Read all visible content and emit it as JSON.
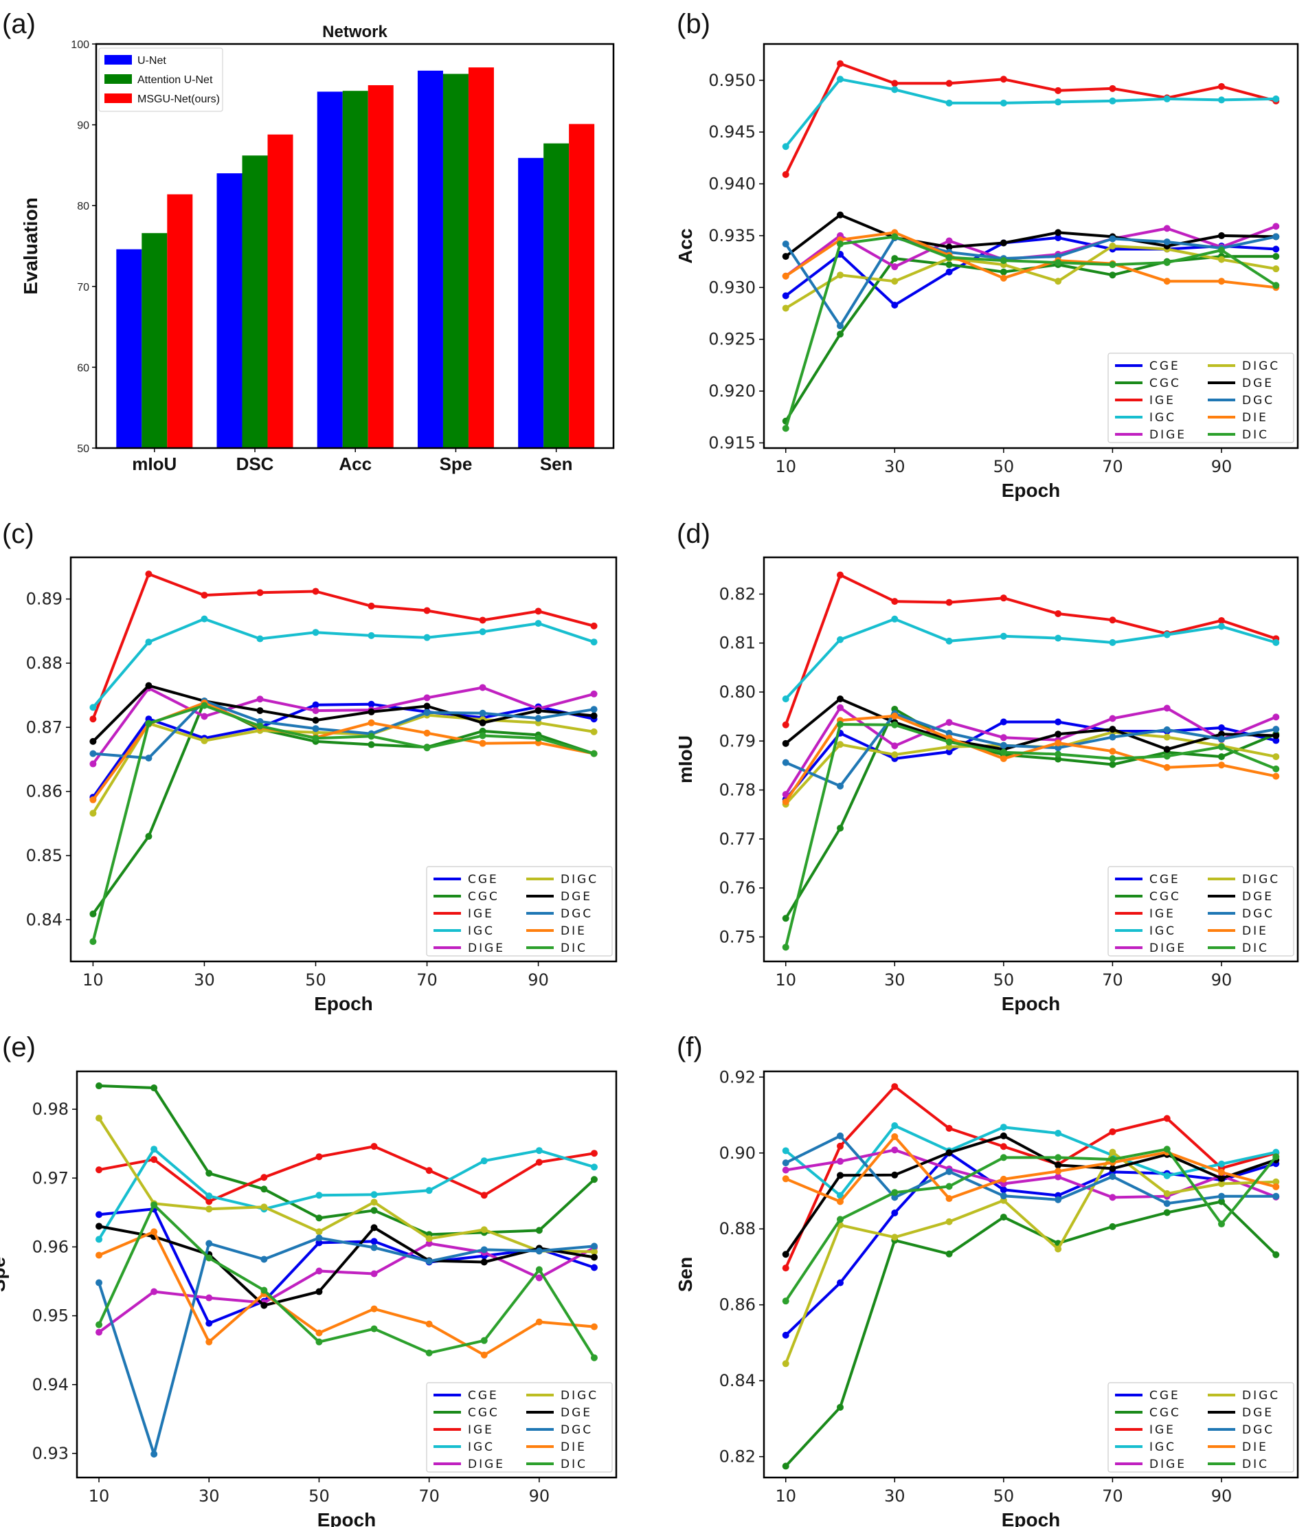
{
  "colors": {
    "U-Net": "#0000ff",
    "Attention U-Net": "#008000",
    "MSGU-Net(ours)": "#ff0000",
    "CGE": "#0000ee",
    "CGC": "#1a8a1a",
    "IGE": "#ee1111",
    "IGC": "#17becf",
    "DIGE": "#c020c0",
    "DIGC": "#bcbd22",
    "DGE": "#000000",
    "DGC": "#1f77b4",
    "DIE": "#ff7f0e",
    "DIC": "#2ca02c"
  },
  "legend_order": [
    "CGE",
    "DIGC",
    "CGC",
    "DGE",
    "IGE",
    "DGC",
    "IGC",
    "DIE",
    "DIGE",
    "DIC"
  ],
  "legend_labels": {
    "CGE": "CGE",
    "DIGC": "DIGC",
    "CGC": "CGC",
    "DGE": "DGE",
    "IGE": "IGE",
    "DGC": "DGC",
    "IGC": "IGC",
    "DIE": "DIE",
    "DIGE": "DIGE",
    "DIC": "DIC"
  },
  "chart_data": [
    {
      "panel": "(a)",
      "type": "bar",
      "title": "Network",
      "xlabel": "",
      "ylabel": "Evaluation",
      "ylim": [
        50,
        100
      ],
      "yticks": [
        50,
        60,
        70,
        80,
        90,
        100
      ],
      "categories": [
        "mIoU",
        "DSC",
        "Acc",
        "Spe",
        "Sen"
      ],
      "series": [
        {
          "name": "U-Net",
          "values": [
            74.6,
            84.0,
            94.1,
            96.7,
            85.9
          ]
        },
        {
          "name": "Attention U-Net",
          "values": [
            76.6,
            86.2,
            94.2,
            96.3,
            87.7
          ]
        },
        {
          "name": "MSGU-Net(ours)",
          "values": [
            81.4,
            88.8,
            94.9,
            97.1,
            90.1
          ]
        }
      ],
      "legend_position": "top-left"
    },
    {
      "panel": "(b)",
      "type": "line",
      "xlabel": "Epoch",
      "ylabel": "Acc",
      "ylim": [
        0.9145,
        0.9535
      ],
      "yticks": [
        "0.915",
        "0.920",
        "0.925",
        "0.930",
        "0.935",
        "0.940",
        "0.945",
        "0.950"
      ],
      "xticks": [
        "10",
        "30",
        "50",
        "70",
        "90"
      ],
      "x": [
        10,
        20,
        30,
        40,
        50,
        60,
        70,
        80,
        90,
        100
      ],
      "legend_position": "bottom-right",
      "series": [
        {
          "name": "CGE",
          "values": [
            0.9292,
            0.9332,
            0.9283,
            0.9315,
            0.9343,
            0.9348,
            0.9337,
            0.9337,
            0.934,
            0.9337
          ]
        },
        {
          "name": "CGC",
          "values": [
            0.9171,
            0.9255,
            0.9328,
            0.9322,
            0.9315,
            0.9322,
            0.9312,
            0.9325,
            0.933,
            0.933
          ]
        },
        {
          "name": "IGE",
          "values": [
            0.9409,
            0.9516,
            0.9497,
            0.9497,
            0.9501,
            0.949,
            0.9492,
            0.9483,
            0.9494,
            0.948
          ]
        },
        {
          "name": "IGC",
          "values": [
            0.9436,
            0.9501,
            0.9491,
            0.9478,
            0.9478,
            0.9479,
            0.948,
            0.9482,
            0.9481,
            0.9482
          ]
        },
        {
          "name": "DIGE",
          "values": [
            0.9311,
            0.935,
            0.932,
            0.9345,
            0.9327,
            0.9332,
            0.9347,
            0.9357,
            0.9339,
            0.9359
          ]
        },
        {
          "name": "DIGC",
          "values": [
            0.928,
            0.9312,
            0.9306,
            0.9328,
            0.9322,
            0.9306,
            0.934,
            0.9337,
            0.9327,
            0.9318
          ]
        },
        {
          "name": "DGE",
          "values": [
            0.933,
            0.937,
            0.9348,
            0.9339,
            0.9343,
            0.9353,
            0.9349,
            0.934,
            0.935,
            0.9349
          ]
        },
        {
          "name": "DGC",
          "values": [
            0.9342,
            0.9263,
            0.9348,
            0.9334,
            0.9328,
            0.933,
            0.9347,
            0.9344,
            0.9338,
            0.9349
          ]
        },
        {
          "name": "DIE",
          "values": [
            0.9311,
            0.9346,
            0.9353,
            0.9331,
            0.9309,
            0.9326,
            0.9323,
            0.9306,
            0.9306,
            0.93
          ]
        },
        {
          "name": "DIC",
          "values": [
            0.9164,
            0.9342,
            0.9349,
            0.9329,
            0.9326,
            0.9324,
            0.9322,
            0.9324,
            0.9336,
            0.9302
          ]
        }
      ]
    },
    {
      "panel": "(c)",
      "type": "line",
      "xlabel": "Epoch",
      "ylabel": "DSC",
      "ylim": [
        0.8335,
        0.8965
      ],
      "yticks": [
        "0.84",
        "0.85",
        "0.86",
        "0.87",
        "0.88",
        "0.89"
      ],
      "xticks": [
        "10",
        "30",
        "50",
        "70",
        "90"
      ],
      "x": [
        10,
        20,
        30,
        40,
        50,
        60,
        70,
        80,
        90,
        100
      ],
      "legend_position": "bottom-right",
      "series": [
        {
          "name": "CGE",
          "values": [
            0.8591,
            0.8713,
            0.8683,
            0.87,
            0.8735,
            0.8736,
            0.8724,
            0.8715,
            0.8732,
            0.8713
          ]
        },
        {
          "name": "CGC",
          "values": [
            0.8409,
            0.853,
            0.874,
            0.8697,
            0.8678,
            0.8673,
            0.8669,
            0.8694,
            0.8688,
            0.8659
          ]
        },
        {
          "name": "IGE",
          "values": [
            0.8713,
            0.8939,
            0.8906,
            0.891,
            0.8912,
            0.8889,
            0.8882,
            0.8867,
            0.8881,
            0.8858
          ]
        },
        {
          "name": "IGC",
          "values": [
            0.8731,
            0.8833,
            0.8869,
            0.8838,
            0.8848,
            0.8843,
            0.884,
            0.8849,
            0.8862,
            0.8833
          ]
        },
        {
          "name": "DIGE",
          "values": [
            0.8643,
            0.8761,
            0.8717,
            0.8744,
            0.8726,
            0.8727,
            0.8746,
            0.8762,
            0.8729,
            0.8752
          ]
        },
        {
          "name": "DIGC",
          "values": [
            0.8566,
            0.8706,
            0.8679,
            0.8695,
            0.8692,
            0.8689,
            0.8719,
            0.8712,
            0.8707,
            0.8693
          ]
        },
        {
          "name": "DGE",
          "values": [
            0.8678,
            0.8765,
            0.8741,
            0.8726,
            0.8711,
            0.8724,
            0.8733,
            0.8707,
            0.8726,
            0.8718
          ]
        },
        {
          "name": "DGC",
          "values": [
            0.8659,
            0.8652,
            0.8741,
            0.8709,
            0.8698,
            0.869,
            0.8723,
            0.8722,
            0.8714,
            0.8728
          ]
        },
        {
          "name": "DIE",
          "values": [
            0.8587,
            0.8705,
            0.8738,
            0.87,
            0.8684,
            0.8707,
            0.8691,
            0.8675,
            0.8676,
            0.8659
          ]
        },
        {
          "name": "DIC",
          "values": [
            0.8366,
            0.8706,
            0.8734,
            0.8702,
            0.8683,
            0.8686,
            0.8668,
            0.8687,
            0.8683,
            0.8659
          ]
        }
      ]
    },
    {
      "panel": "(d)",
      "type": "line",
      "xlabel": "Epoch",
      "ylabel": "mIoU",
      "ylim": [
        0.745,
        0.8275
      ],
      "yticks": [
        "0.75",
        "0.76",
        "0.77",
        "0.78",
        "0.79",
        "0.80",
        "0.81",
        "0.82"
      ],
      "xticks": [
        "10",
        "30",
        "50",
        "70",
        "90"
      ],
      "x": [
        10,
        20,
        30,
        40,
        50,
        60,
        70,
        80,
        90,
        100
      ],
      "legend_position": "bottom-right",
      "series": [
        {
          "name": "CGE",
          "values": [
            0.7781,
            0.7916,
            0.7864,
            0.7878,
            0.7939,
            0.7939,
            0.792,
            0.792,
            0.7927,
            0.7901
          ]
        },
        {
          "name": "CGC",
          "values": [
            0.7538,
            0.7722,
            0.7965,
            0.7901,
            0.7872,
            0.7863,
            0.7852,
            0.7877,
            0.7868,
            0.7914
          ]
        },
        {
          "name": "IGE",
          "values": [
            0.7933,
            0.8239,
            0.8185,
            0.8183,
            0.8192,
            0.816,
            0.8147,
            0.8119,
            0.8146,
            0.8109
          ]
        },
        {
          "name": "IGC",
          "values": [
            0.7986,
            0.8107,
            0.8149,
            0.8104,
            0.8114,
            0.811,
            0.8101,
            0.8117,
            0.8134,
            0.8101
          ]
        },
        {
          "name": "DIGE",
          "values": [
            0.7791,
            0.7968,
            0.789,
            0.7938,
            0.7907,
            0.7902,
            0.7946,
            0.7967,
            0.7903,
            0.7949
          ]
        },
        {
          "name": "DIGC",
          "values": [
            0.7771,
            0.7893,
            0.7872,
            0.7888,
            0.7891,
            0.7887,
            0.7918,
            0.7908,
            0.789,
            0.7868
          ]
        },
        {
          "name": "DGE",
          "values": [
            0.7895,
            0.7986,
            0.7938,
            0.7902,
            0.7883,
            0.7914,
            0.7924,
            0.7883,
            0.7914,
            0.7911
          ]
        },
        {
          "name": "DGC",
          "values": [
            0.7856,
            0.7808,
            0.7956,
            0.7916,
            0.7891,
            0.7886,
            0.7908,
            0.7923,
            0.7904,
            0.7924
          ]
        },
        {
          "name": "DIE",
          "values": [
            0.7776,
            0.7942,
            0.7951,
            0.7906,
            0.7864,
            0.7896,
            0.7879,
            0.7846,
            0.7851,
            0.7828
          ]
        },
        {
          "name": "DIC",
          "values": [
            0.7479,
            0.7934,
            0.7933,
            0.7898,
            0.7877,
            0.7873,
            0.7864,
            0.7869,
            0.7888,
            0.7843
          ]
        }
      ]
    },
    {
      "panel": "(e)",
      "type": "line",
      "xlabel": "Epoch",
      "ylabel": "Spe",
      "ylim": [
        0.9265,
        0.9855
      ],
      "yticks": [
        "0.93",
        "0.94",
        "0.95",
        "0.96",
        "0.97",
        "0.98"
      ],
      "xticks": [
        "10",
        "30",
        "50",
        "70",
        "90"
      ],
      "x": [
        10,
        20,
        30,
        40,
        50,
        60,
        70,
        80,
        90,
        100
      ],
      "legend_position": "bottom-right",
      "series": [
        {
          "name": "CGE",
          "values": [
            0.9647,
            0.9655,
            0.9489,
            0.9521,
            0.9606,
            0.9608,
            0.9578,
            0.9587,
            0.9597,
            0.957
          ]
        },
        {
          "name": "CGC",
          "values": [
            0.9834,
            0.9831,
            0.9707,
            0.9684,
            0.9642,
            0.9653,
            0.9618,
            0.9621,
            0.9624,
            0.9698
          ]
        },
        {
          "name": "IGE",
          "values": [
            0.9712,
            0.9727,
            0.9666,
            0.9701,
            0.9731,
            0.9746,
            0.9711,
            0.9675,
            0.9723,
            0.9736
          ]
        },
        {
          "name": "IGC",
          "values": [
            0.9611,
            0.9742,
            0.9674,
            0.9655,
            0.9675,
            0.9676,
            0.9682,
            0.9725,
            0.974,
            0.9716
          ]
        },
        {
          "name": "DIGE",
          "values": [
            0.9476,
            0.9535,
            0.9526,
            0.9519,
            0.9565,
            0.9561,
            0.9605,
            0.9592,
            0.9555,
            0.9599
          ]
        },
        {
          "name": "DIGC",
          "values": [
            0.9787,
            0.9663,
            0.9655,
            0.9658,
            0.9622,
            0.9665,
            0.9612,
            0.9625,
            0.9594,
            0.9593
          ]
        },
        {
          "name": "DGE",
          "values": [
            0.963,
            0.9615,
            0.9589,
            0.9515,
            0.9535,
            0.9628,
            0.958,
            0.9578,
            0.9598,
            0.9585
          ]
        },
        {
          "name": "DGC",
          "values": [
            0.9548,
            0.9299,
            0.9605,
            0.9582,
            0.9613,
            0.9599,
            0.9579,
            0.9596,
            0.9594,
            0.9601
          ]
        },
        {
          "name": "DIE",
          "values": [
            0.9588,
            0.9622,
            0.9462,
            0.9532,
            0.9475,
            0.951,
            0.9488,
            0.9443,
            0.9491,
            0.9484
          ]
        },
        {
          "name": "DIC",
          "values": [
            0.9487,
            0.9661,
            0.9584,
            0.9537,
            0.9462,
            0.9481,
            0.9446,
            0.9464,
            0.9567,
            0.9439
          ]
        }
      ]
    },
    {
      "panel": "(f)",
      "type": "line",
      "xlabel": "Epoch",
      "ylabel": "Sen",
      "ylim": [
        0.8145,
        0.9215
      ],
      "yticks": [
        "0.82",
        "0.84",
        "0.86",
        "0.88",
        "0.90",
        "0.92"
      ],
      "xticks": [
        "10",
        "30",
        "50",
        "70",
        "90"
      ],
      "x": [
        10,
        20,
        30,
        40,
        50,
        60,
        70,
        80,
        90,
        100
      ],
      "legend_position": "bottom-right",
      "series": [
        {
          "name": "CGE",
          "values": [
            0.852,
            0.8658,
            0.8842,
            0.9,
            0.8903,
            0.8888,
            0.895,
            0.8946,
            0.8929,
            0.8972
          ]
        },
        {
          "name": "CGC",
          "values": [
            0.8175,
            0.833,
            0.877,
            0.8734,
            0.8831,
            0.8762,
            0.8806,
            0.8843,
            0.8872,
            0.8732
          ]
        },
        {
          "name": "IGE",
          "values": [
            0.8697,
            0.9018,
            0.9175,
            0.9065,
            0.9017,
            0.897,
            0.9056,
            0.9091,
            0.896,
            0.9
          ]
        },
        {
          "name": "IGC",
          "values": [
            0.9006,
            0.8888,
            0.9072,
            0.9006,
            0.9068,
            0.9052,
            0.8994,
            0.894,
            0.8971,
            0.9002
          ]
        },
        {
          "name": "DIGE",
          "values": [
            0.8955,
            0.8978,
            0.9008,
            0.8958,
            0.8919,
            0.8937,
            0.8883,
            0.8886,
            0.894,
            0.8884
          ]
        },
        {
          "name": "DIGC",
          "values": [
            0.8445,
            0.881,
            0.8778,
            0.8819,
            0.8875,
            0.8747,
            0.9002,
            0.8893,
            0.8919,
            0.8924
          ]
        },
        {
          "name": "DGE",
          "values": [
            0.8733,
            0.8941,
            0.8942,
            0.9001,
            0.9045,
            0.8968,
            0.8959,
            0.8996,
            0.8933,
            0.8982
          ]
        },
        {
          "name": "DGC",
          "values": [
            0.8974,
            0.9045,
            0.8883,
            0.8951,
            0.8887,
            0.8877,
            0.8938,
            0.8867,
            0.8886,
            0.8886
          ]
        },
        {
          "name": "DIE",
          "values": [
            0.8932,
            0.8872,
            0.9043,
            0.888,
            0.8931,
            0.8952,
            0.8975,
            0.9002,
            0.8949,
            0.8911
          ]
        },
        {
          "name": "DIC",
          "values": [
            0.861,
            0.8825,
            0.8896,
            0.8912,
            0.8988,
            0.8988,
            0.8983,
            0.901,
            0.8813,
            0.899
          ]
        }
      ]
    }
  ]
}
